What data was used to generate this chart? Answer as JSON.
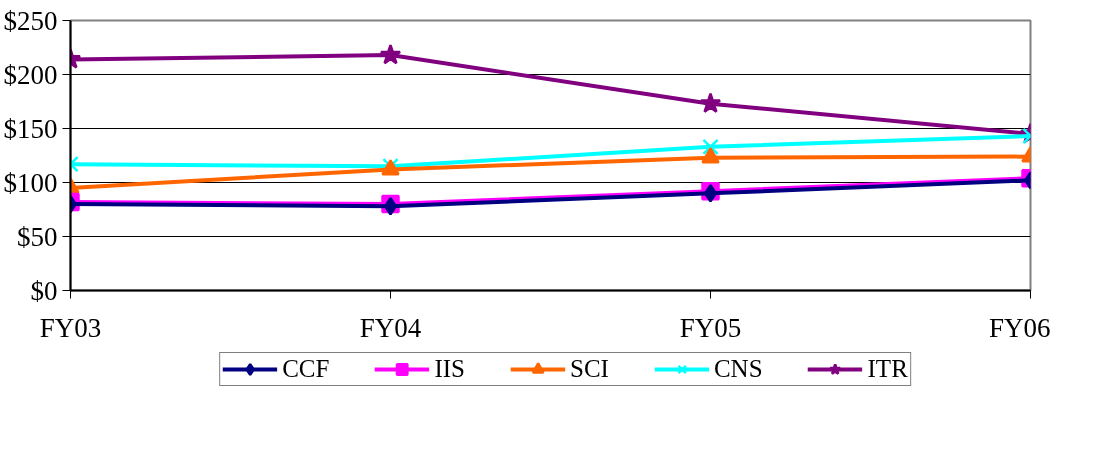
{
  "chart_data": {
    "type": "line",
    "categories": [
      "FY03",
      "FY04",
      "FY05",
      "FY06"
    ],
    "ylim": [
      0,
      250
    ],
    "yticks": [
      {
        "value": 0,
        "label": "$0"
      },
      {
        "value": 50,
        "label": "$50"
      },
      {
        "value": 100,
        "label": "$100"
      },
      {
        "value": 150,
        "label": "$150"
      },
      {
        "value": 200,
        "label": "$200"
      },
      {
        "value": 250,
        "label": "$250"
      }
    ],
    "grid": "y",
    "legend": "bottom",
    "series": [
      {
        "name": "CCF",
        "color": "#000080",
        "marker": "diamond",
        "values": [
          80,
          78,
          90,
          102
        ]
      },
      {
        "name": "IIS",
        "color": "#ff00ff",
        "marker": "square",
        "values": [
          82,
          80,
          92,
          104
        ]
      },
      {
        "name": "SCI",
        "color": "#ff6600",
        "marker": "triangle",
        "values": [
          95,
          112,
          123,
          124
        ]
      },
      {
        "name": "CNS",
        "color": "#00ffff",
        "marker": "cross",
        "values": [
          117,
          115,
          133,
          143
        ]
      },
      {
        "name": "ITR",
        "color": "#800080",
        "marker": "star",
        "values": [
          214,
          218,
          173,
          145
        ]
      }
    ]
  }
}
